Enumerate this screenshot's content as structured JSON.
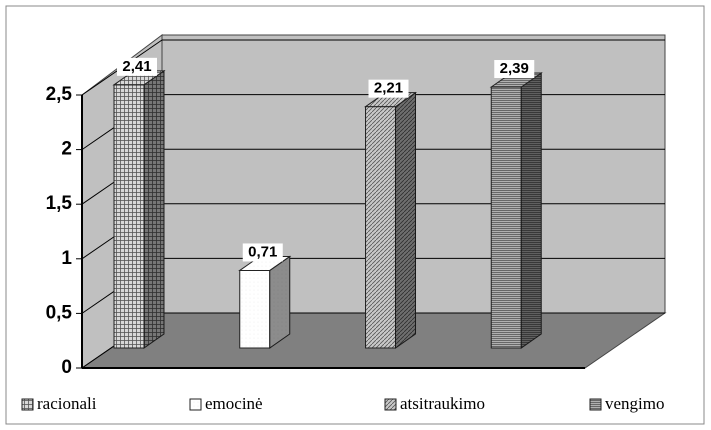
{
  "chart_data": {
    "type": "bar",
    "series": [
      {
        "name": "racionali",
        "color": "#d8d8d8",
        "values": [
          2.41
        ],
        "value_labels": [
          "2,41"
        ]
      },
      {
        "name": "emocinė",
        "color": "#ffffff",
        "values": [
          0.71
        ],
        "value_labels": [
          "0,71"
        ]
      },
      {
        "name": "atsitraukimo",
        "color": "#c8c8c8",
        "values": [
          2.21
        ],
        "value_labels": [
          "2,21"
        ]
      },
      {
        "name": "vengimo",
        "color": "#b0b0b0",
        "values": [
          2.39
        ],
        "value_labels": [
          "2,39"
        ]
      }
    ],
    "ylim": [
      0,
      2.5
    ],
    "yticks": [
      0,
      {
        "value": 0.5,
        "label": "0,5"
      },
      1,
      {
        "value": 1.5,
        "label": "1,5"
      },
      2,
      {
        "value": 2.5,
        "label": "2,5"
      }
    ],
    "grid": true
  }
}
